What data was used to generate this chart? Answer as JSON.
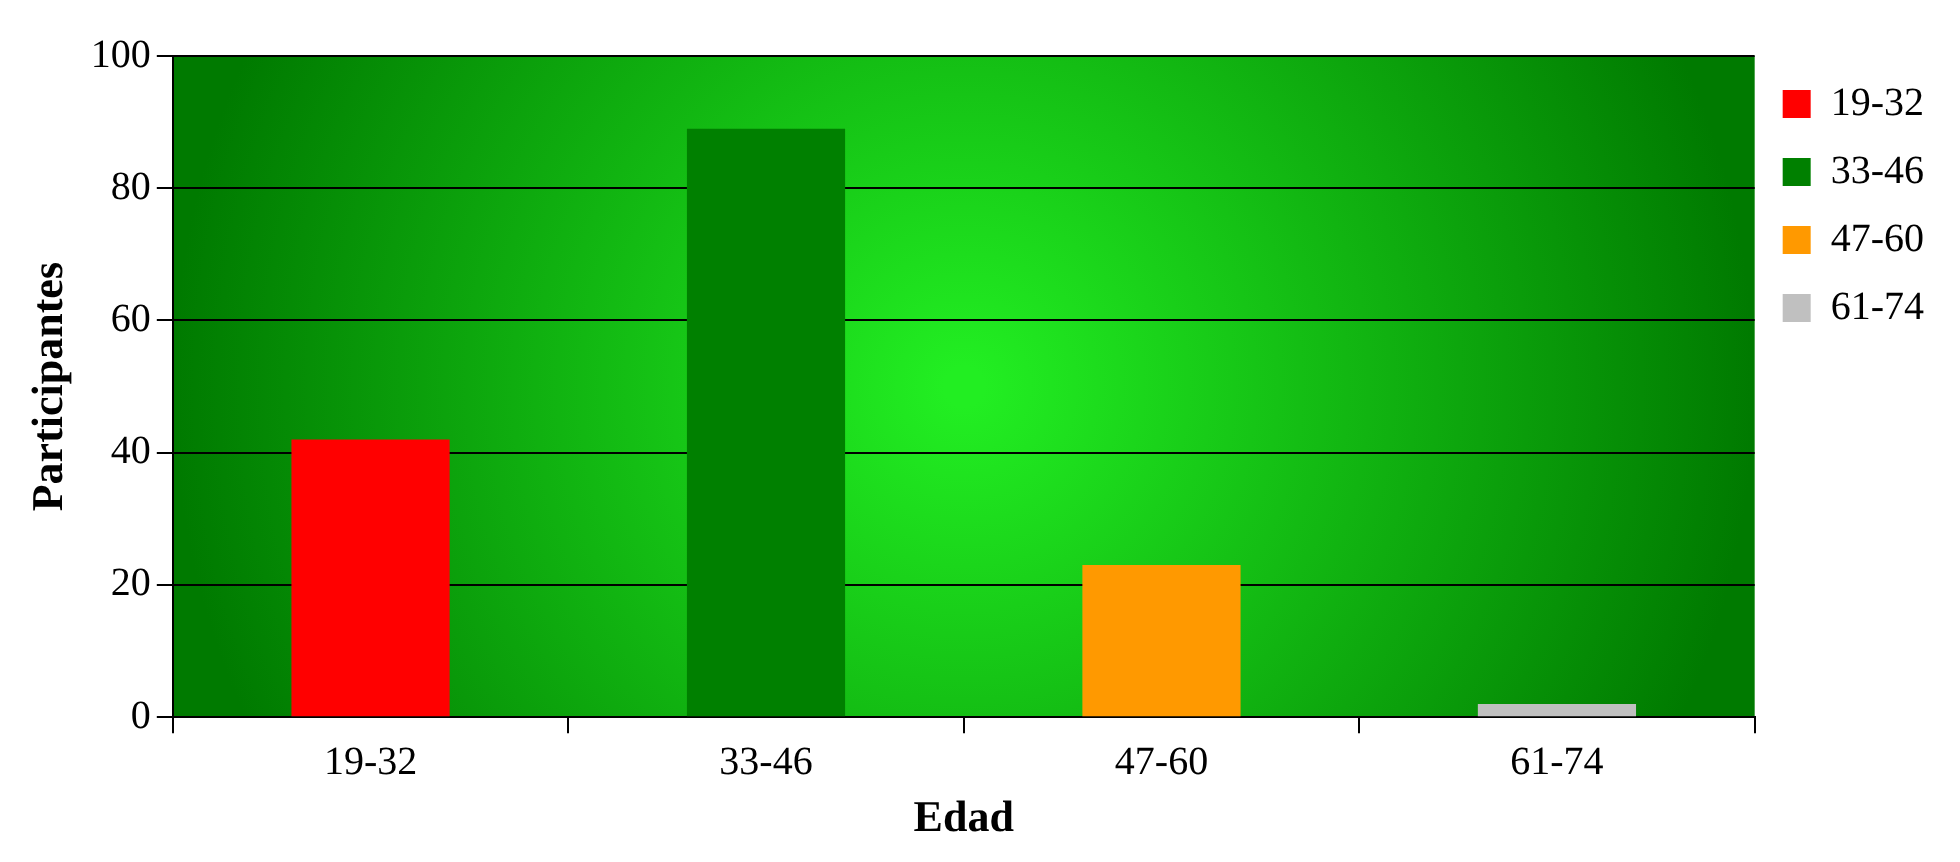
{
  "chart_data": {
    "type": "bar",
    "xlabel": "Edad",
    "ylabel": "Participantes",
    "categories": [
      "19-32",
      "33-46",
      "47-60",
      "61-74"
    ],
    "series": [
      {
        "name": "19-32",
        "color": "#ff0000",
        "values": [
          42,
          null,
          null,
          null
        ]
      },
      {
        "name": "33-46",
        "color": "#008000",
        "values": [
          null,
          89,
          null,
          null
        ]
      },
      {
        "name": "47-60",
        "color": "#ff9900",
        "values": [
          null,
          null,
          23,
          null
        ]
      },
      {
        "name": "61-74",
        "color": "#c0c0c0",
        "values": [
          null,
          null,
          null,
          2
        ]
      }
    ],
    "ylim": [
      0,
      100
    ],
    "yticks": [
      0,
      20,
      40,
      60,
      80,
      100
    ],
    "grid": "y",
    "legend": "top right"
  }
}
